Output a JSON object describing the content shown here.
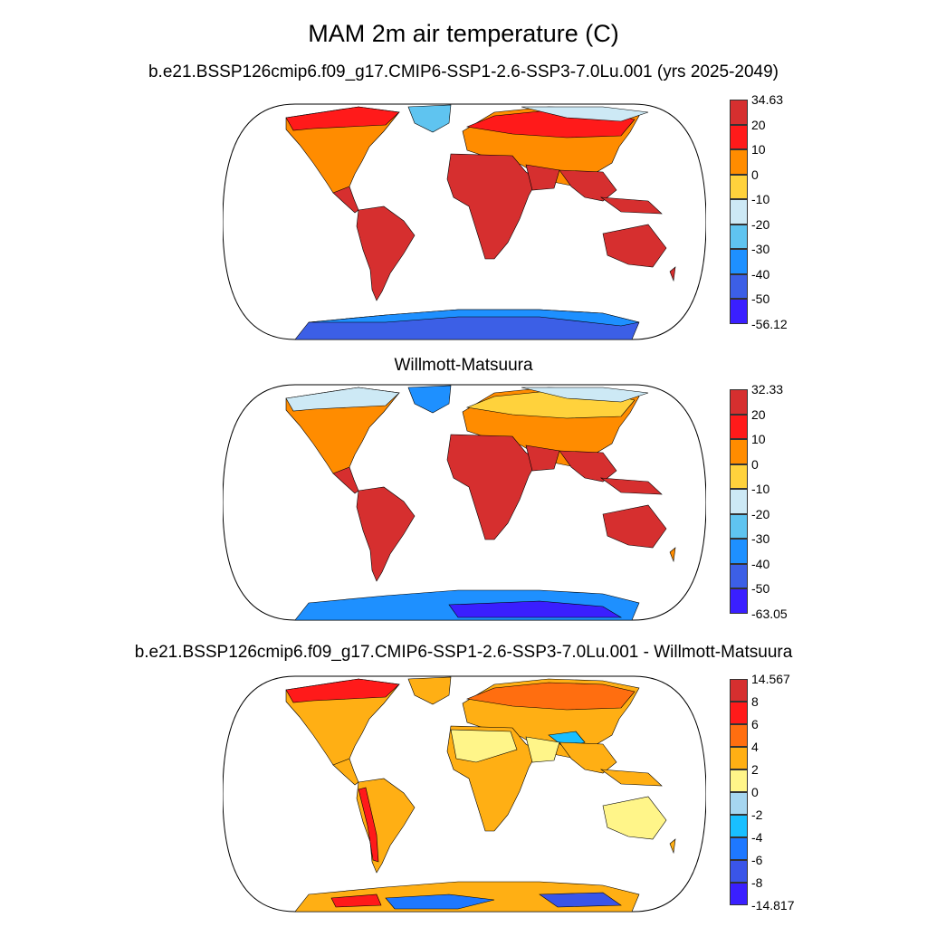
{
  "title": "MAM 2m air temperature (C)",
  "panels": [
    {
      "subtitle": "b.e21.BSSP126cmip6.f09_g17.CMIP6-SSP1-2.6-SSP3-7.0Lu.001 (yrs 2025-2049)",
      "colorbar": {
        "labels": [
          "34.63",
          "20",
          "10",
          "0",
          "-10",
          "-20",
          "-30",
          "-40",
          "-50",
          "-56.12"
        ],
        "colors": [
          "#d62f2f",
          "#ff1a1a",
          "#ff8c00",
          "#ffd23c",
          "#cde9f5",
          "#5fc4f0",
          "#1e90ff",
          "#3c5fe6",
          "#3a1fff"
        ]
      }
    },
    {
      "subtitle": "Willmott-Matsuura",
      "colorbar": {
        "labels": [
          "32.33",
          "20",
          "10",
          "0",
          "-10",
          "-20",
          "-30",
          "-40",
          "-50",
          "-63.05"
        ],
        "colors": [
          "#d62f2f",
          "#ff1a1a",
          "#ff8c00",
          "#ffd23c",
          "#cde9f5",
          "#5fc4f0",
          "#1e90ff",
          "#3c5fe6",
          "#3a1fff"
        ]
      }
    },
    {
      "subtitle": "b.e21.BSSP126cmip6.f09_g17.CMIP6-SSP1-2.6-SSP3-7.0Lu.001 - Willmott-Matsuura",
      "colorbar": {
        "labels": [
          "14.567",
          "8",
          "6",
          "4",
          "2",
          "0",
          "-2",
          "-4",
          "-6",
          "-8",
          "-14.817"
        ],
        "colors": [
          "#d62f2f",
          "#ff1a1a",
          "#ff6e10",
          "#ffaf14",
          "#fff589",
          "#a6d6f0",
          "#19bfff",
          "#1e78ff",
          "#3a55e8",
          "#3a1fff"
        ]
      }
    }
  ]
}
